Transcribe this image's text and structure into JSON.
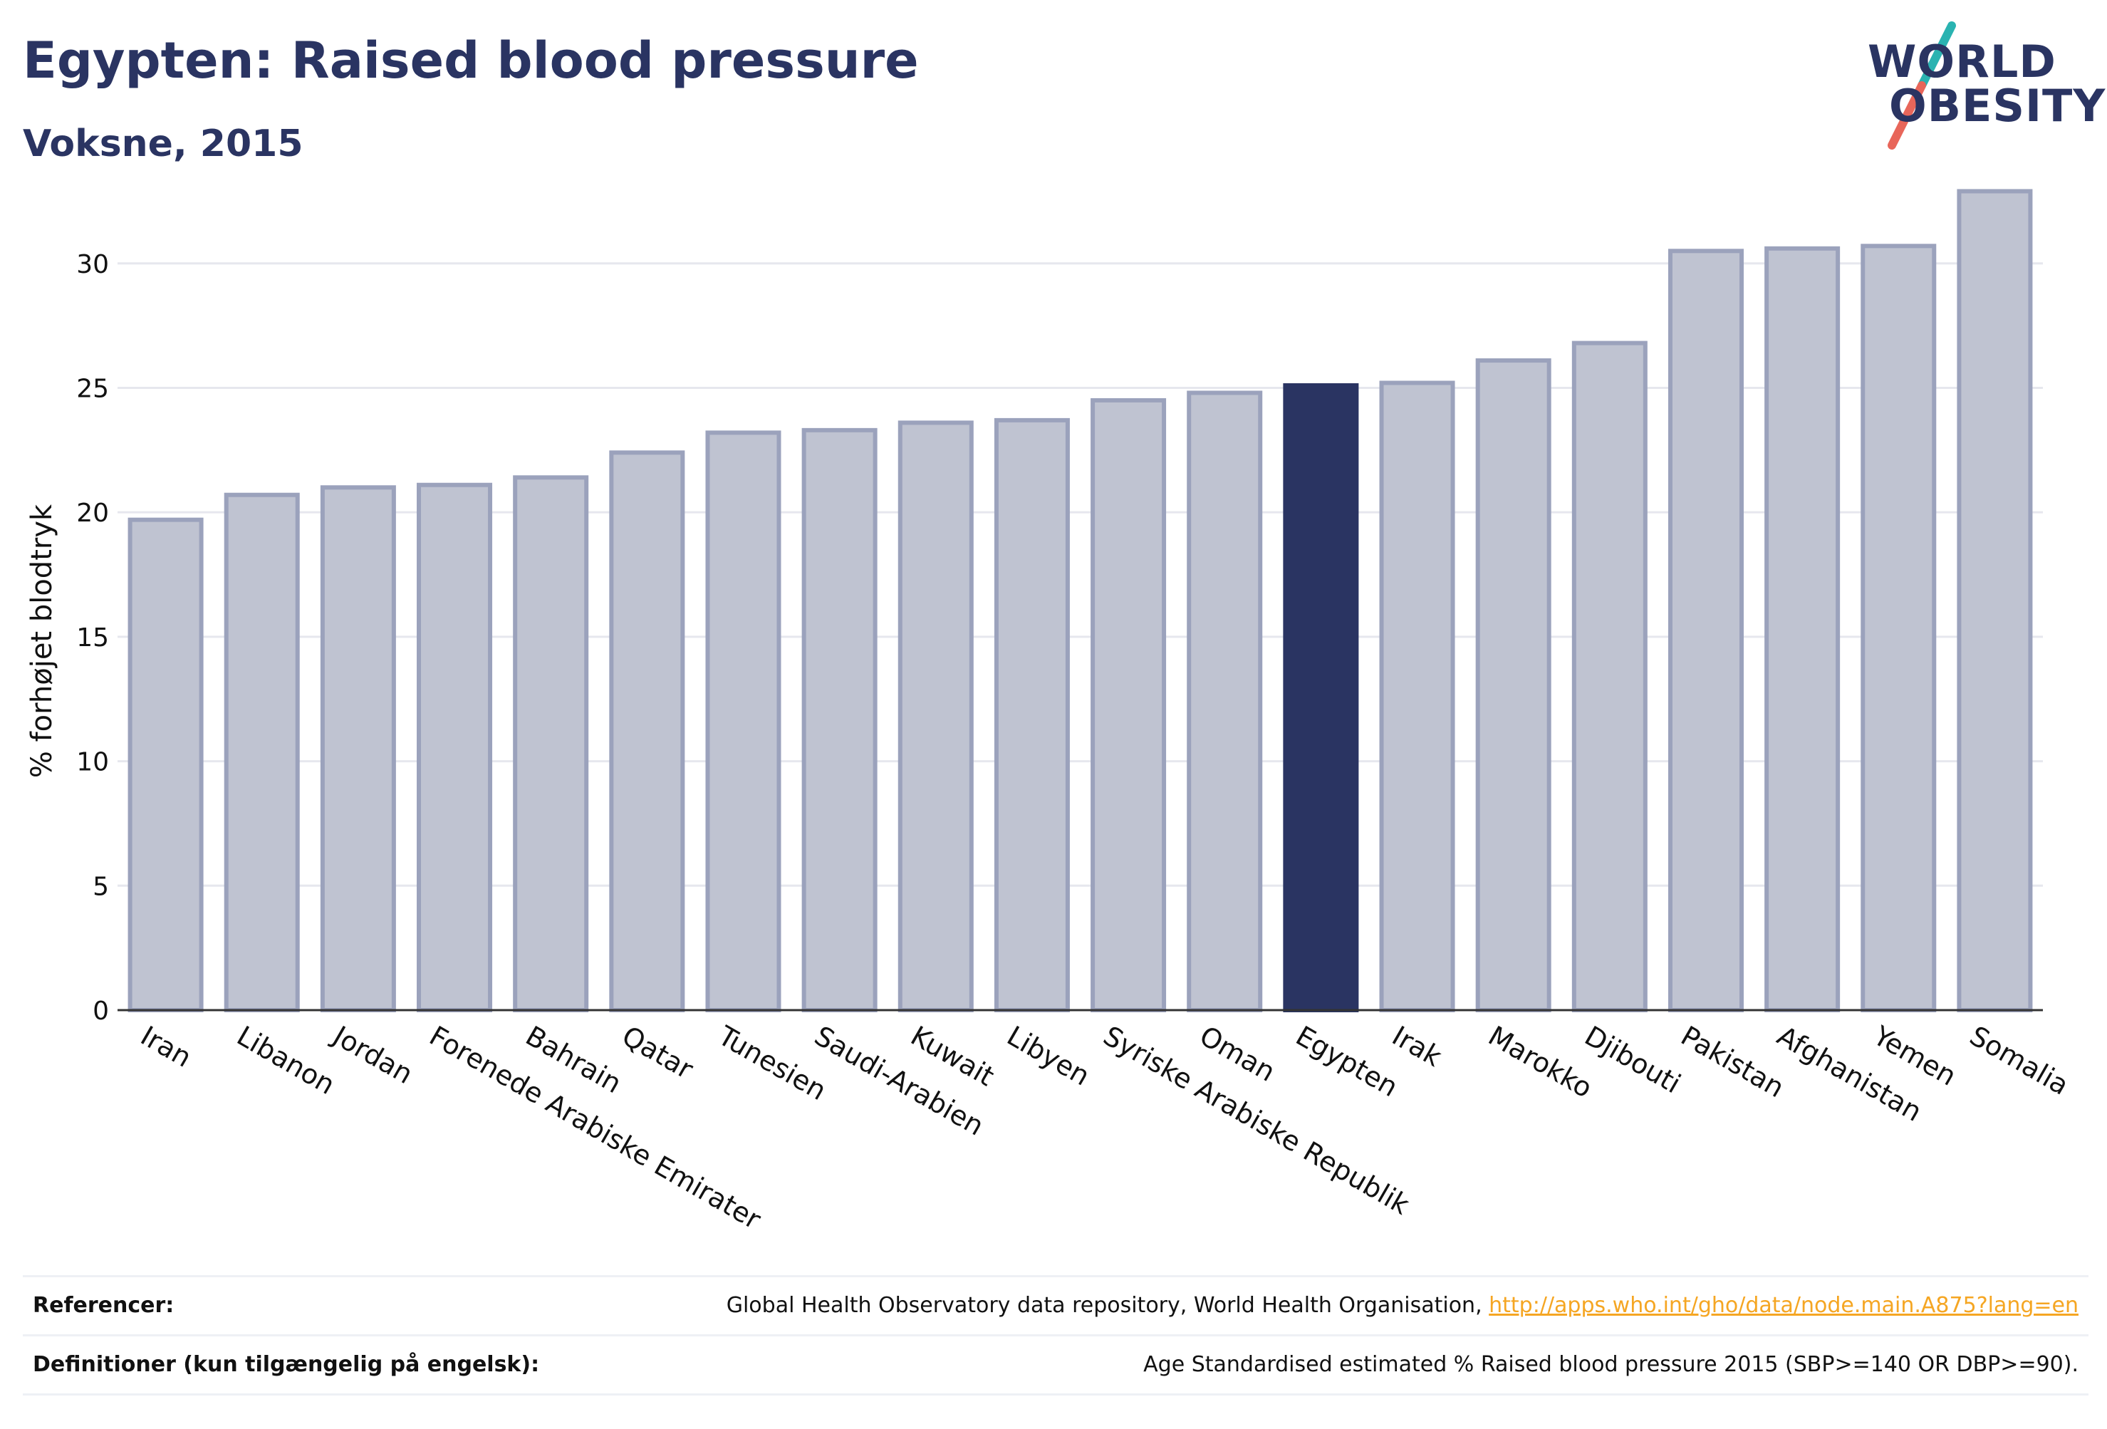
{
  "header": {
    "title": "Egypten: Raised blood pressure",
    "subtitle": "Voksne, 2015"
  },
  "logo": {
    "line1": "WORLD",
    "line2": "OBESITY",
    "colors": {
      "text": "#2a3462",
      "slash_top": "#2ab3b1",
      "slash_bottom": "#e8665a"
    }
  },
  "colors": {
    "bar_default": "#bfc3d1",
    "bar_default_stroke": "#9ba2bc",
    "bar_highlight": "#2a3462",
    "grid": "#e6e7ee",
    "axis": "#333333"
  },
  "chart_data": {
    "type": "bar",
    "title": "Egypten: Raised blood pressure",
    "subtitle": "Voksne, 2015",
    "xlabel": "",
    "ylabel": "% forhøjet blodtryk",
    "ylim": [
      0,
      34
    ],
    "yticks": [
      0,
      5,
      10,
      15,
      20,
      25,
      30
    ],
    "grid": true,
    "highlight": "Egypten",
    "categories": [
      "Iran",
      "Libanon",
      "Jordan",
      "Forenede Arabiske Emirater",
      "Bahrain",
      "Qatar",
      "Tunesien",
      "Saudi-Arabien",
      "Kuwait",
      "Libyen",
      "Syriske Arabiske Republik",
      "Oman",
      "Egypten",
      "Irak",
      "Marokko",
      "Djibouti",
      "Pakistan",
      "Afghanistan",
      "Yemen",
      "Somalia"
    ],
    "values": [
      19.7,
      20.7,
      21.0,
      21.1,
      21.4,
      22.4,
      23.2,
      23.3,
      23.6,
      23.7,
      24.5,
      24.8,
      25.1,
      25.2,
      26.1,
      26.8,
      30.5,
      30.6,
      30.7,
      32.9
    ]
  },
  "references": [
    {
      "label": "Referencer:",
      "text": "Global Health Observatory data repository, World Health Organisation, ",
      "link": "http://apps.who.int/gho/data/node.main.A875?lang=en"
    },
    {
      "label": "Definitioner (kun tilgængelig på engelsk):",
      "text": "Age Standardised estimated % Raised blood pressure 2015 (SBP>=140 OR DBP>=90).",
      "link": ""
    }
  ]
}
